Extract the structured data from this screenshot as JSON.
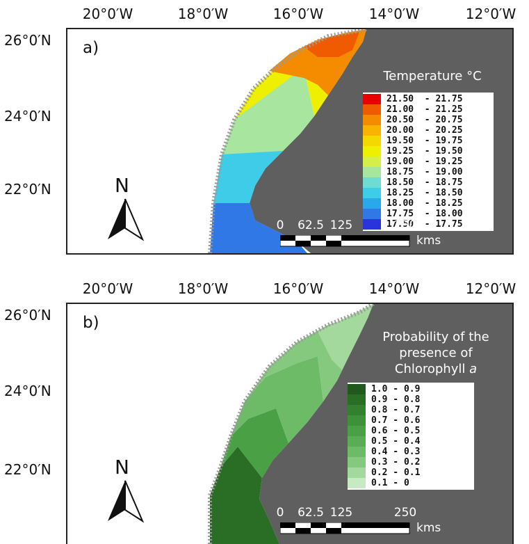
{
  "panels": [
    {
      "letter": "a)",
      "legend_title": "Temperature °C",
      "legend_items": [
        {
          "label": "21.50  - 21.75",
          "color": "#e60000"
        },
        {
          "label": "21.00  - 21.25",
          "color": "#f05a00"
        },
        {
          "label": "20.50  - 20.75",
          "color": "#f58c00"
        },
        {
          "label": "20.00  - 20.25",
          "color": "#f8b400"
        },
        {
          "label": "19.50  - 19.75",
          "color": "#f5d800"
        },
        {
          "label": "19.25  - 19.50",
          "color": "#eef000"
        },
        {
          "label": "19.00  - 19.25",
          "color": "#d4ee4a"
        },
        {
          "label": "18.75  - 19.00",
          "color": "#a8e6a0"
        },
        {
          "label": "18.50  - 18.75",
          "color": "#6fdcd4"
        },
        {
          "label": "18.25  - 18.50",
          "color": "#3ecce8"
        },
        {
          "label": "18.00  - 18.25",
          "color": "#2aa8ec"
        },
        {
          "label": "17.75  - 18.00",
          "color": "#2f78e6"
        },
        {
          "label": "17.50  - 17.75",
          "color": "#2a34dc"
        }
      ]
    },
    {
      "letter": "b)",
      "legend_title_lines": [
        "Probability of the",
        "presence of",
        "Chlorophyll "
      ],
      "legend_title_italic": "a",
      "legend_items": [
        {
          "label": "1.0 - 0.9",
          "color": "#1f5a1c"
        },
        {
          "label": "0.9 - 0.8",
          "color": "#2a6e26"
        },
        {
          "label": "0.8 - 0.7",
          "color": "#33802e"
        },
        {
          "label": "0.7 - 0.6",
          "color": "#3d9138"
        },
        {
          "label": "0.6 - 0.5",
          "color": "#4aa044"
        },
        {
          "label": "0.5 - 0.4",
          "color": "#5aad54"
        },
        {
          "label": "0.4 - 0.3",
          "color": "#6dbb67"
        },
        {
          "label": "0.3 - 0.2",
          "color": "#85c97f"
        },
        {
          "label": "0.2 - 0.1",
          "color": "#a3d99d"
        },
        {
          "label": "0.1 - 0",
          "color": "#c6eac1"
        }
      ]
    }
  ],
  "longitude_labels": [
    "20°0′W",
    "18°0′W",
    "16°0′W",
    "14°0′W",
    "12°0′W"
  ],
  "latitude_labels": [
    "26°0′N",
    "24°0′N",
    "22°0′N"
  ],
  "north_arrow_letter": "N",
  "scale_bar": {
    "labels": [
      "0",
      "62.5",
      "125",
      "250"
    ],
    "unit": "kms"
  },
  "colors": {
    "land": "#5f5f5f",
    "coastline_detail": "#9a9a9a",
    "frame": "#222222"
  },
  "icons": {
    "north_arrow": "north-arrow-icon"
  }
}
